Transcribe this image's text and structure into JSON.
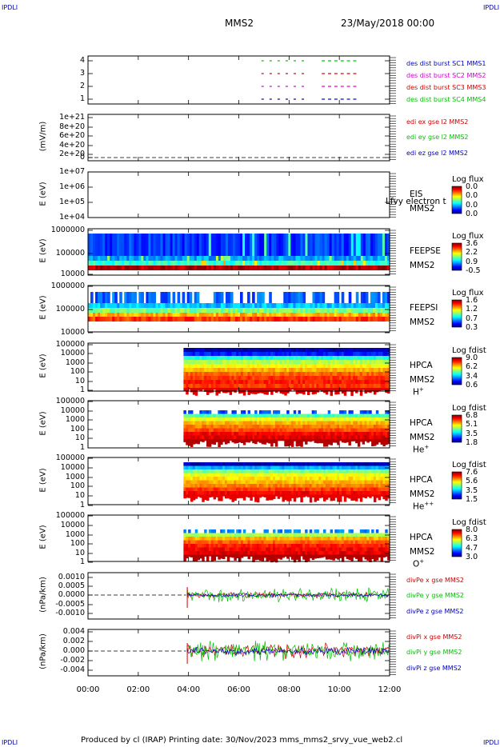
{
  "corner_labels": {
    "tl": "IPDLI",
    "tr": "IPDLI",
    "bl": "IPDLI",
    "br": "IPDLI"
  },
  "header": {
    "spacecraft": "MMS2",
    "date": "23/May/2018 00:00"
  },
  "footer": {
    "text": "Produced by cl (IRAP)   Printing date: 30/Nov/2023   mms_mms2_srvy_vue_web2.cl"
  },
  "xaxis": {
    "ticks": [
      "00:00",
      "02:00",
      "04:00",
      "06:00",
      "08:00",
      "10:00",
      "12:00"
    ],
    "range_hours": [
      0,
      12
    ]
  },
  "panels": [
    {
      "id": "burst",
      "ylabel": "",
      "yticks": [
        "4",
        "3",
        "2",
        "1"
      ],
      "legend": [
        {
          "text": "des dist burst SC1 MMS1",
          "color": "#0000c0"
        },
        {
          "text": "des dist burst SC2 MMS2",
          "color": "#d000d0"
        },
        {
          "text": "des dist burst SC3 MMS3",
          "color": "#d00000"
        },
        {
          "text": "des dist burst SC4 MMS4",
          "color": "#00c000"
        }
      ]
    },
    {
      "id": "edi",
      "ylabel": "(mV/m)",
      "yticks": [
        "1e+21",
        "8e+20",
        "6e+20",
        "4e+20",
        "2e+20",
        "0"
      ],
      "legend": [
        {
          "text": "edi ex gse l2 MMS2",
          "color": "#d00000"
        },
        {
          "text": "edi ey gse l2 MMS2",
          "color": "#00c000"
        },
        {
          "text": "edi ez gse l2 MMS2",
          "color": "#0000c0"
        }
      ]
    },
    {
      "id": "eis",
      "ylabel": "E (eV)",
      "yticks": [
        "1e+07",
        "1e+06",
        "1e+05",
        "1e+04"
      ],
      "side": [
        "EIS",
        "MMS2"
      ],
      "overlay": "Lfvy electron t",
      "cbar": {
        "title": "Log flux",
        "values": [
          "0.0",
          "0.0",
          "0.0",
          "0.0"
        ]
      }
    },
    {
      "id": "feepse",
      "ylabel": "E (eV)",
      "yticks": [
        "1000000",
        "100000",
        "10000"
      ],
      "side": [
        "FEEPSE",
        "MMS2"
      ],
      "cbar": {
        "title": "Log flux",
        "values": [
          "3.6",
          "2.2",
          "0.9",
          "-0.5"
        ]
      }
    },
    {
      "id": "feepsi",
      "ylabel": "E (eV)",
      "yticks": [
        "1000000",
        "100000",
        "10000"
      ],
      "side": [
        "FEEPSI",
        "MMS2"
      ],
      "cbar": {
        "title": "Log flux",
        "values": [
          "1.6",
          "1.2",
          "0.7",
          "0.3"
        ]
      }
    },
    {
      "id": "hpca_h",
      "ylabel": "E (eV)",
      "yticks": [
        "100000",
        "10000",
        "1000",
        "100",
        "10",
        "1"
      ],
      "side": [
        "HPCA",
        "MMS2",
        "H"
      ],
      "species_sup": "+",
      "cbar": {
        "title": "Log fdist",
        "values": [
          "9.0",
          "6.2",
          "3.4",
          "0.6"
        ]
      }
    },
    {
      "id": "hpca_he",
      "ylabel": "E (eV)",
      "yticks": [
        "100000",
        "10000",
        "1000",
        "100",
        "10",
        "1"
      ],
      "side": [
        "HPCA",
        "MMS2",
        "He"
      ],
      "species_sup": "+",
      "cbar": {
        "title": "Log fdist",
        "values": [
          "6.8",
          "5.1",
          "3.5",
          "1.8"
        ]
      }
    },
    {
      "id": "hpca_hepp",
      "ylabel": "E (eV)",
      "yticks": [
        "100000",
        "10000",
        "1000",
        "100",
        "10",
        "1"
      ],
      "side": [
        "HPCA",
        "MMS2",
        "He"
      ],
      "species_sup": "++",
      "cbar": {
        "title": "Log fdist",
        "values": [
          "7.6",
          "5.6",
          "3.5",
          "1.5"
        ]
      }
    },
    {
      "id": "hpca_o",
      "ylabel": "E (eV)",
      "yticks": [
        "100000",
        "10000",
        "1000",
        "100",
        "10",
        "1"
      ],
      "side": [
        "HPCA",
        "MMS2",
        "O"
      ],
      "species_sup": "+",
      "cbar": {
        "title": "Log fdist",
        "values": [
          "8.0",
          "6.3",
          "4.7",
          "3.0"
        ]
      }
    },
    {
      "id": "divpe",
      "ylabel": "(nPa/km)",
      "yticks": [
        "0.0010",
        "0.0005",
        "0.0000",
        "-0.0005",
        "-0.0010"
      ],
      "legend": [
        {
          "text": "divPe x gse MMS2",
          "color": "#d00000"
        },
        {
          "text": "divPe y gse MMS2",
          "color": "#00c000"
        },
        {
          "text": "divPe z gse MMS2",
          "color": "#0000c0"
        }
      ]
    },
    {
      "id": "divpi",
      "ylabel": "(nPa/km)",
      "yticks": [
        "0.004",
        "0.002",
        "0.000",
        "-0.002",
        "-0.004"
      ],
      "legend": [
        {
          "text": "divPi x gse MMS2",
          "color": "#d00000"
        },
        {
          "text": "divPi y gse MMS2",
          "color": "#00c000"
        },
        {
          "text": "divPi z gse MMS2",
          "color": "#0000c0"
        }
      ]
    }
  ],
  "chart_data": {
    "type": "heatmap",
    "x_unit": "UT hours on 23/May/2018",
    "xlim": [
      0,
      12
    ],
    "hpca_data_start_hour": 3.8,
    "colors": {
      "line_x": "#d00000",
      "line_y": "#00c000",
      "line_z": "#0000c0"
    }
  }
}
